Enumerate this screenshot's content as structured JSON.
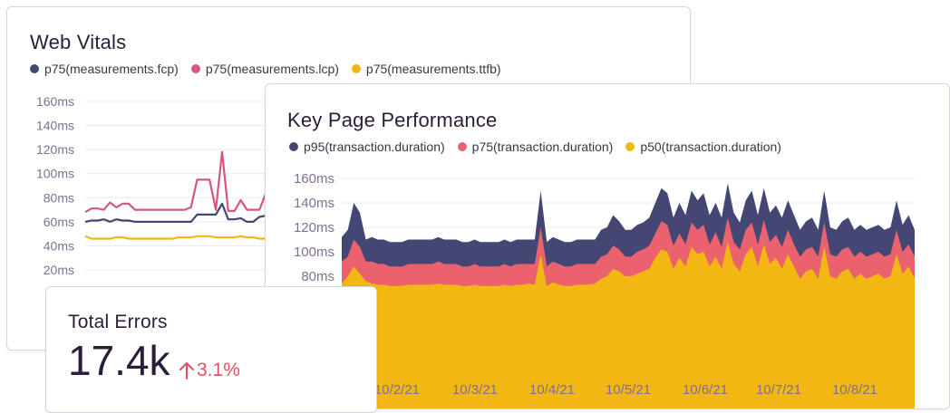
{
  "web_vitals": {
    "title": "Web Vitals",
    "colors": {
      "fcp": "#444674",
      "lcp": "#d6567f",
      "ttfb": "#f2b712"
    }
  },
  "key_performance": {
    "title": "Key Page Performance",
    "colors": {
      "p95": "#444674",
      "p75": "#e9626e",
      "p50": "#f2b712"
    }
  },
  "total_errors": {
    "title": "Total Errors",
    "value": "17.4k",
    "delta_icon": "arrow-up-icon",
    "delta": "3.1%",
    "delta_color": "#e0525e"
  },
  "chart_data": [
    {
      "type": "line",
      "y_ticks": [
        "160ms",
        "140ms",
        "120ms",
        "100ms",
        "80ms",
        "60ms",
        "40ms",
        "20ms"
      ],
      "ylim": [
        20,
        160
      ],
      "grid": true,
      "legend_position": "top-left",
      "series": [
        {
          "name": "p75(measurements.fcp)",
          "values": [
            60,
            61,
            61,
            62,
            60,
            62,
            61,
            61,
            60,
            60,
            60,
            60,
            60,
            60,
            60,
            60,
            60,
            60,
            66,
            66,
            66,
            66,
            75,
            62,
            62,
            63,
            60,
            60,
            64,
            65
          ]
        },
        {
          "name": "p75(measurements.lcp)",
          "values": [
            68,
            71,
            71,
            70,
            76,
            72,
            75,
            75,
            70,
            70,
            70,
            70,
            70,
            70,
            70,
            70,
            70,
            72,
            95,
            95,
            95,
            70,
            118,
            69,
            69,
            78,
            70,
            70,
            70,
            83
          ]
        },
        {
          "name": "p75(measurements.ttfb)",
          "values": [
            48,
            46,
            46,
            46,
            46,
            47,
            47,
            46,
            46,
            46,
            46,
            46,
            46,
            46,
            46,
            47,
            47,
            47,
            48,
            48,
            48,
            47,
            47,
            47,
            47,
            48,
            47,
            47,
            46,
            46
          ]
        }
      ]
    },
    {
      "type": "area",
      "x_ticks": [
        "10/2/21",
        "10/3/21",
        "10/4/21",
        "10/5/21",
        "10/6/21",
        "10/7/21",
        "10/8/21"
      ],
      "y_ticks": [
        "160ms",
        "140ms",
        "120ms",
        "100ms",
        "80ms"
      ],
      "ylim": [
        0,
        160
      ],
      "grid": true,
      "legend_position": "top-left",
      "series": [
        {
          "name": "p95(transaction.duration)",
          "values": [
            112,
            118,
            140,
            132,
            110,
            112,
            110,
            110,
            108,
            108,
            108,
            110,
            110,
            110,
            110,
            110,
            112,
            110,
            110,
            110,
            108,
            108,
            110,
            108,
            108,
            108,
            108,
            110,
            108,
            110,
            110,
            110,
            110,
            150,
            108,
            112,
            110,
            108,
            108,
            110,
            110,
            110,
            110,
            118,
            120,
            130,
            125,
            118,
            118,
            122,
            124,
            128,
            140,
            152,
            148,
            128,
            140,
            130,
            150,
            142,
            148,
            130,
            140,
            128,
            156,
            132,
            124,
            142,
            150,
            130,
            152,
            132,
            138,
            128,
            142,
            130,
            118,
            125,
            128,
            118,
            150,
            120,
            118,
            125,
            128,
            118,
            122,
            118,
            120,
            122,
            118,
            120,
            142,
            122,
            130,
            118
          ]
        },
        {
          "name": "p75(transaction.duration)",
          "values": [
            92,
            96,
            110,
            104,
            92,
            92,
            90,
            90,
            88,
            88,
            88,
            90,
            90,
            90,
            90,
            90,
            92,
            90,
            90,
            90,
            88,
            88,
            90,
            88,
            88,
            88,
            88,
            90,
            88,
            90,
            90,
            90,
            90,
            120,
            88,
            92,
            90,
            88,
            88,
            90,
            90,
            90,
            90,
            96,
            98,
            105,
            102,
            96,
            96,
            100,
            102,
            105,
            115,
            125,
            122,
            105,
            115,
            106,
            124,
            118,
            122,
            106,
            116,
            104,
            128,
            108,
            102,
            118,
            124,
            106,
            126,
            108,
            114,
            104,
            118,
            106,
            96,
            102,
            104,
            96,
            124,
            98,
            96,
            102,
            104,
            96,
            100,
            96,
            98,
            100,
            96,
            98,
            118,
            100,
            106,
            96
          ]
        },
        {
          "name": "p50(transaction.duration)",
          "values": [
            74,
            80,
            88,
            82,
            76,
            74,
            73,
            73,
            72,
            72,
            72,
            73,
            73,
            73,
            73,
            73,
            74,
            73,
            73,
            73,
            72,
            72,
            73,
            72,
            72,
            72,
            72,
            73,
            72,
            73,
            73,
            74,
            73,
            98,
            72,
            75,
            73,
            72,
            72,
            73,
            73,
            73,
            74,
            78,
            80,
            86,
            84,
            80,
            80,
            82,
            84,
            86,
            95,
            102,
            100,
            86,
            95,
            88,
            104,
            98,
            100,
            88,
            96,
            86,
            108,
            90,
            84,
            98,
            104,
            88,
            106,
            90,
            95,
            86,
            98,
            88,
            78,
            84,
            86,
            78,
            104,
            80,
            78,
            84,
            86,
            78,
            82,
            78,
            80,
            82,
            78,
            80,
            98,
            82,
            88,
            78
          ]
        }
      ]
    }
  ]
}
